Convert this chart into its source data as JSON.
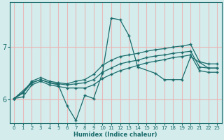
{
  "xlabel": "Humidex (Indice chaleur)",
  "bg_color": "#d4ecec",
  "line_color": "#1a6b6b",
  "grid_color": "#e8b8b8",
  "xlim": [
    -0.5,
    23.5
  ],
  "ylim": [
    5.55,
    7.85
  ],
  "yticks": [
    6,
    7
  ],
  "xticks": [
    0,
    1,
    2,
    3,
    4,
    5,
    6,
    7,
    8,
    9,
    10,
    11,
    12,
    13,
    14,
    15,
    16,
    17,
    18,
    19,
    20,
    21,
    22,
    23
  ],
  "s1_x": [
    0,
    1,
    2,
    3,
    4,
    5,
    6,
    7,
    8,
    9,
    10,
    11,
    12,
    13,
    14,
    15,
    16,
    17,
    18,
    19,
    20,
    21,
    22,
    23
  ],
  "s1_y": [
    6.02,
    6.12,
    6.32,
    6.38,
    6.32,
    6.3,
    6.28,
    6.3,
    6.32,
    6.38,
    6.52,
    6.6,
    6.68,
    6.72,
    6.75,
    6.8,
    6.83,
    6.85,
    6.88,
    6.9,
    6.92,
    6.62,
    6.6,
    6.6
  ],
  "s2_x": [
    0,
    1,
    2,
    3,
    4,
    5,
    6,
    7,
    8,
    9,
    10,
    11,
    12,
    13,
    14,
    15,
    16,
    17,
    18,
    19,
    20,
    21,
    22,
    23
  ],
  "s2_y": [
    6.02,
    6.14,
    6.35,
    6.42,
    6.35,
    6.32,
    6.3,
    6.35,
    6.38,
    6.48,
    6.65,
    6.75,
    6.82,
    6.85,
    6.88,
    6.92,
    6.95,
    6.97,
    7.0,
    7.02,
    7.05,
    6.72,
    6.68,
    6.68
  ],
  "s3_x": [
    0,
    1,
    2,
    3,
    4,
    5,
    6,
    7,
    8,
    9,
    10,
    11,
    12,
    13,
    14,
    15,
    16,
    17,
    18,
    19,
    20,
    21,
    22,
    23
  ],
  "s3_y": [
    6.02,
    6.05,
    6.28,
    6.35,
    6.28,
    6.25,
    6.22,
    6.22,
    6.22,
    6.28,
    6.4,
    6.48,
    6.55,
    6.6,
    6.65,
    6.7,
    6.73,
    6.76,
    6.8,
    6.82,
    6.85,
    6.55,
    6.52,
    6.52
  ],
  "s4_x": [
    0,
    2,
    3,
    4,
    5,
    6,
    7,
    8,
    9,
    10,
    11,
    12,
    13,
    14,
    16,
    17,
    18,
    19,
    20,
    22,
    23
  ],
  "s4_y": [
    6.02,
    6.32,
    6.38,
    6.32,
    6.28,
    5.88,
    5.6,
    6.08,
    6.02,
    6.5,
    7.55,
    7.52,
    7.22,
    6.62,
    6.5,
    6.38,
    6.38,
    6.38,
    6.82,
    6.6,
    6.6
  ]
}
